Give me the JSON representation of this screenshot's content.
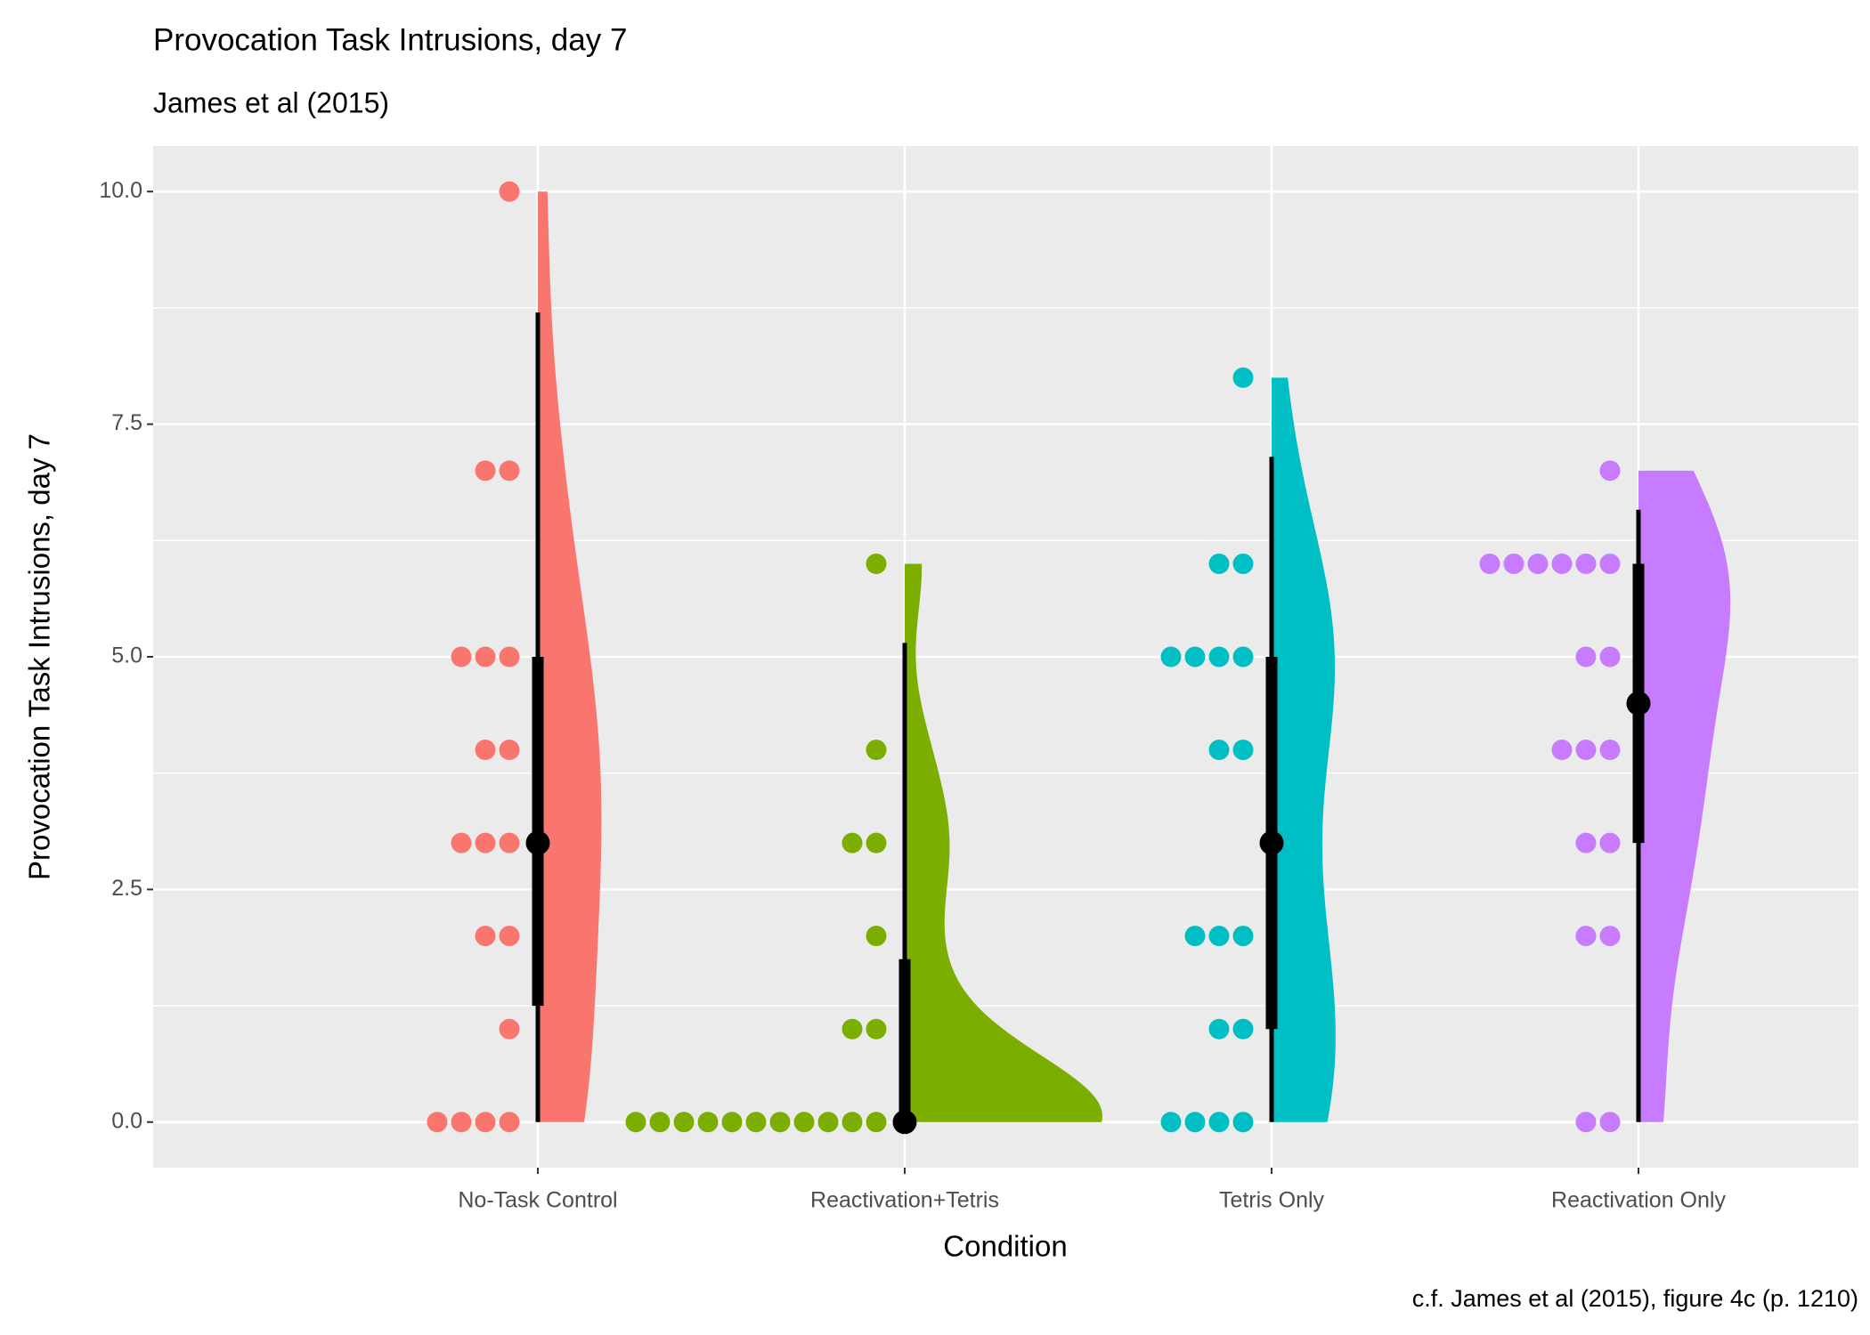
{
  "chart_data": {
    "type": "raincloud",
    "title": "Provocation Task Intrusions, day 7",
    "subtitle": "James et al (2015)",
    "x_label": "Condition",
    "y_label": "Provocation Task Intrusions, day 7",
    "caption": "c.f. James et al (2015), figure 4c (p. 1210)",
    "categories": [
      "No-Task Control",
      "Reactivation+Tetris",
      "Tetris Only",
      "Reactivation Only"
    ],
    "groups": [
      {
        "color": "#F8766D",
        "values": [
          0,
          0,
          0,
          0,
          1,
          2,
          2,
          3,
          3,
          3,
          4,
          4,
          5,
          5,
          5,
          7,
          7,
          10
        ],
        "median": 3,
        "interval_66": [
          1.25,
          5
        ],
        "interval_95": [
          0,
          8.7
        ]
      },
      {
        "color": "#7CAE00",
        "values": [
          0,
          0,
          0,
          0,
          0,
          0,
          0,
          0,
          0,
          0,
          0,
          1,
          1,
          2,
          3,
          3,
          4,
          6
        ],
        "median": 0,
        "interval_66": [
          0,
          1.75
        ],
        "interval_95": [
          0,
          5.15
        ]
      },
      {
        "color": "#00BFC4",
        "values": [
          0,
          0,
          0,
          0,
          1,
          1,
          2,
          2,
          2,
          4,
          4,
          5,
          5,
          5,
          5,
          6,
          6,
          8
        ],
        "median": 3,
        "interval_66": [
          1,
          5
        ],
        "interval_95": [
          0,
          7.15
        ]
      },
      {
        "color": "#C77CFF",
        "values": [
          0,
          0,
          2,
          2,
          3,
          3,
          4,
          4,
          4,
          5,
          5,
          6,
          6,
          6,
          6,
          6,
          6,
          7
        ],
        "median": 4.5,
        "interval_66": [
          3,
          6
        ],
        "interval_95": [
          0,
          6.58
        ]
      }
    ],
    "ylim": [
      -0.49,
      10.49
    ],
    "yticks": [
      {
        "value": 0,
        "label": "0.0"
      },
      {
        "value": 2.5,
        "label": "2.5"
      },
      {
        "value": 5,
        "label": "5.0"
      },
      {
        "value": 7.5,
        "label": "7.5"
      },
      {
        "value": 10,
        "label": "10.0"
      }
    ],
    "grid": true
  }
}
